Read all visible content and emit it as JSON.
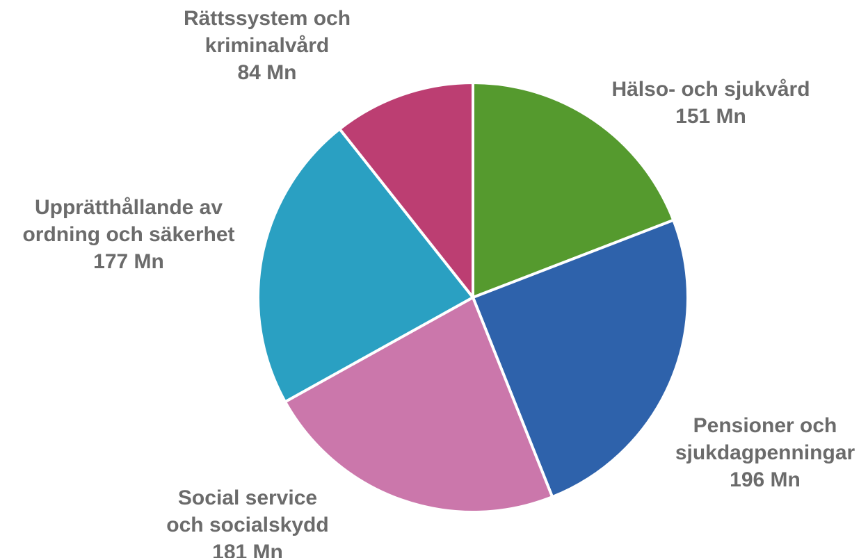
{
  "chart_data": {
    "type": "pie",
    "slices": [
      {
        "label": [
          "Hälso- och sjukvård"
        ],
        "value": 151,
        "value_label": "151 Mn",
        "color": "#559a2e"
      },
      {
        "label": [
          "Pensioner och",
          "sjukdagpenningar"
        ],
        "value": 196,
        "value_label": "196 Mn",
        "color": "#2e62ab"
      },
      {
        "label": [
          "Social service",
          "och socialskydd"
        ],
        "value": 181,
        "value_label": "181 Mn",
        "color": "#cb77ab"
      },
      {
        "label": [
          "Upprätthållande av",
          "ordning och säkerhet"
        ],
        "value": 177,
        "value_label": "177 Mn",
        "color": "#2aa0c2"
      },
      {
        "label": [
          "Rättssystem och",
          "kriminalvård"
        ],
        "value": 84,
        "value_label": "84 Mn",
        "color": "#bc3e72"
      }
    ],
    "start": "12 o'clock",
    "direction": "clockwise",
    "legend": "none"
  }
}
